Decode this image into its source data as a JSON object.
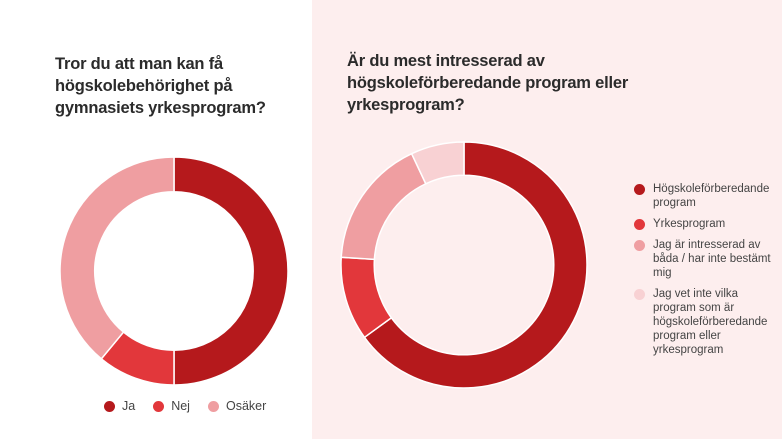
{
  "chart_data": [
    {
      "type": "pie",
      "title": "Tror du att man kan få högskolebehörighet på gymnasiets yrkesprogram?",
      "categories": [
        "Ja",
        "Nej",
        "Osäker"
      ],
      "values": [
        50,
        11,
        39
      ],
      "colors": [
        "#b5191c",
        "#e2373b",
        "#ef9ea1"
      ],
      "legend_position": "bottom"
    },
    {
      "type": "pie",
      "title": "Är du mest intresserad av högskoleförberedande program eller yrkesprogram?",
      "categories": [
        "Högskoleförberedande program",
        "Yrkesprogram",
        "Jag är intresserad av båda / har inte bestämt mig",
        "Jag vet inte vilka program som är högskoleförberedande program eller yrkesprogram"
      ],
      "values": [
        65,
        11,
        17,
        7
      ],
      "colors": [
        "#b5191c",
        "#e2373b",
        "#ef9ea1",
        "#f8d1d3"
      ],
      "legend_position": "right"
    }
  ]
}
